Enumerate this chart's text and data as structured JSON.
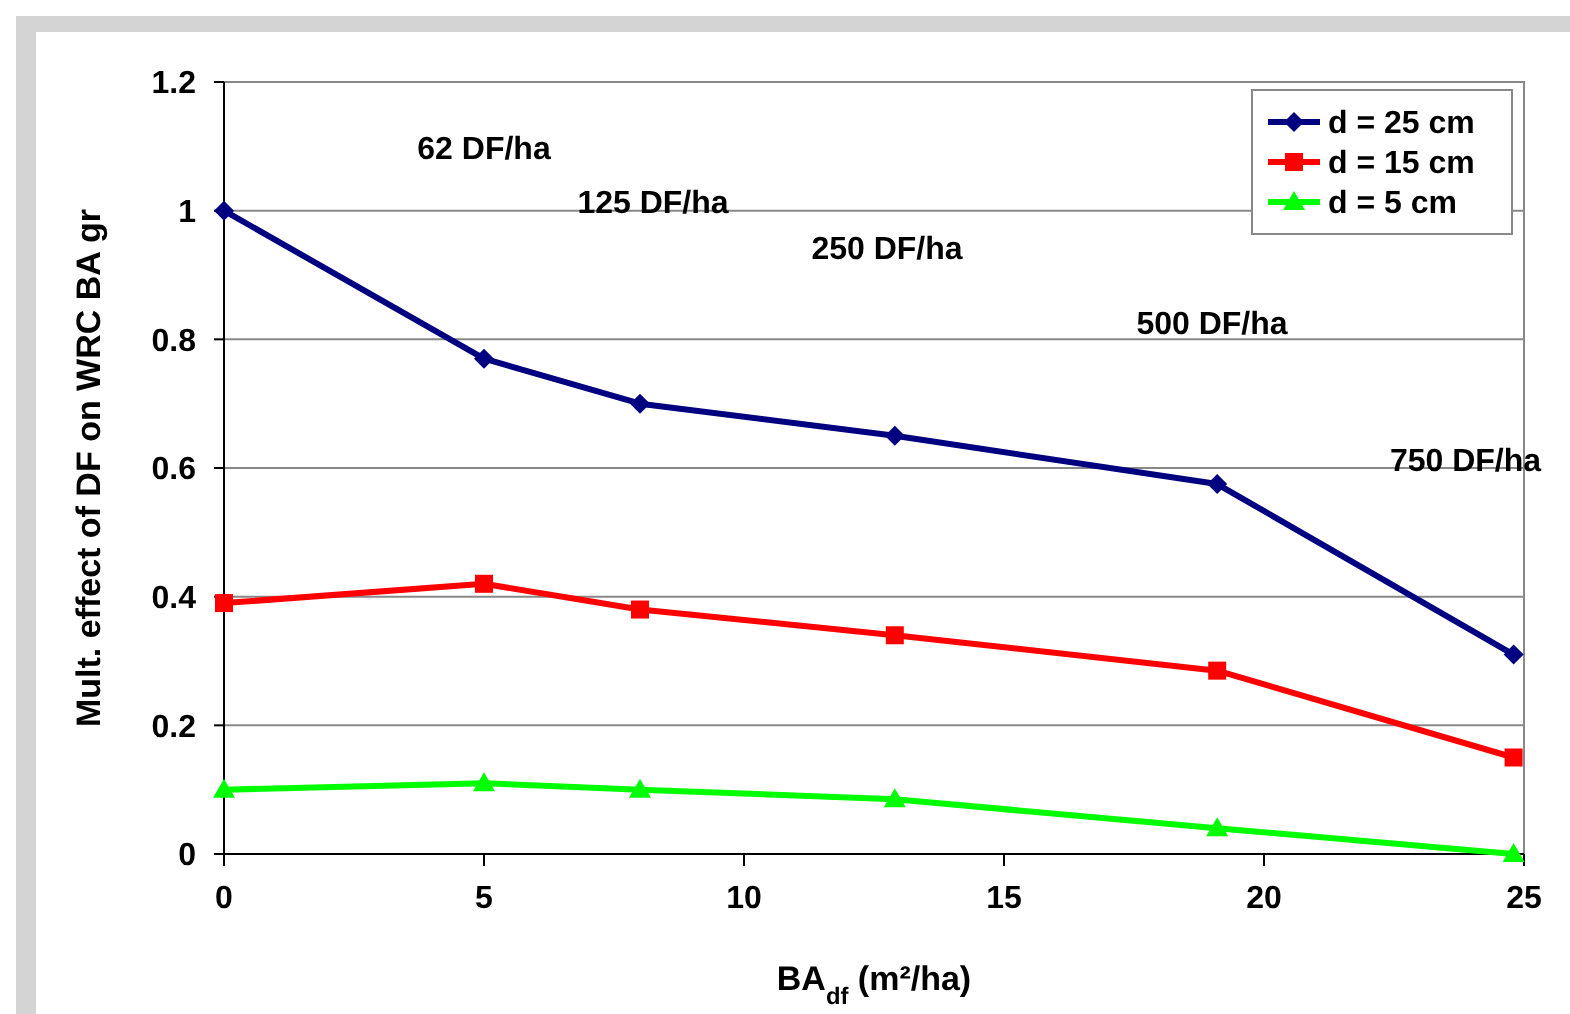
{
  "chart_data": {
    "type": "line",
    "xlabel": "BA$_{df}$ (m²/ha)",
    "ylabel": "Mult. effect of DF on WRC BA gr",
    "x": [
      0,
      5,
      8,
      12.9,
      19.1,
      24.8
    ],
    "series": [
      {
        "name": "d = 25 cm",
        "color": "#000080",
        "marker": "diamond",
        "values": [
          1.0,
          0.77,
          0.7,
          0.65,
          0.575,
          0.31
        ]
      },
      {
        "name": "d = 15 cm",
        "color": "#ff0000",
        "marker": "square",
        "values": [
          0.39,
          0.42,
          0.38,
          0.34,
          0.285,
          0.15
        ]
      },
      {
        "name": "d = 5 cm",
        "color": "#00ff00",
        "marker": "triangle",
        "values": [
          0.1,
          0.11,
          0.1,
          0.085,
          0.04,
          0
        ]
      }
    ],
    "xlim": [
      0,
      25
    ],
    "xticks": [
      0,
      5,
      10,
      15,
      20,
      25
    ],
    "ylim": [
      0,
      1.2
    ],
    "yticks": [
      0,
      0.2,
      0.4,
      0.6,
      0.8,
      1,
      1.2
    ],
    "grid": "y",
    "legend": "top right",
    "line_style": "solid",
    "annotations": [
      "62 DF/ha",
      "125 DF/ha",
      "250 DF/ha",
      "500 DF/ha",
      "750 DF/ha"
    ]
  }
}
